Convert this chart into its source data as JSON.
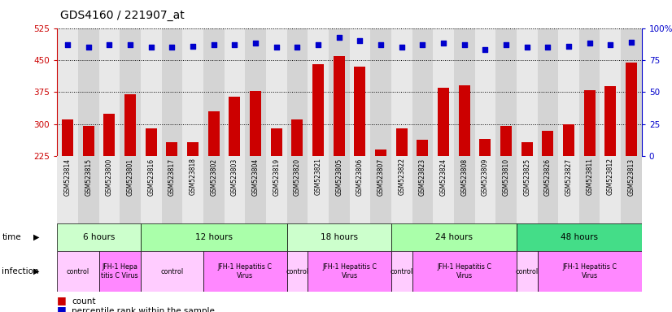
{
  "title": "GDS4160 / 221907_at",
  "samples": [
    "GSM523814",
    "GSM523815",
    "GSM523800",
    "GSM523801",
    "GSM523816",
    "GSM523817",
    "GSM523818",
    "GSM523802",
    "GSM523803",
    "GSM523804",
    "GSM523819",
    "GSM523820",
    "GSM523821",
    "GSM523805",
    "GSM523806",
    "GSM523807",
    "GSM523822",
    "GSM523823",
    "GSM523824",
    "GSM523808",
    "GSM523809",
    "GSM523810",
    "GSM523825",
    "GSM523826",
    "GSM523827",
    "GSM523811",
    "GSM523812",
    "GSM523813"
  ],
  "counts": [
    310,
    295,
    325,
    370,
    290,
    258,
    258,
    330,
    365,
    378,
    290,
    310,
    440,
    460,
    435,
    240,
    290,
    263,
    385,
    390,
    265,
    295,
    258,
    285,
    300,
    380,
    388,
    445
  ],
  "percentiles": [
    87,
    85,
    87,
    87,
    85,
    85,
    86,
    87,
    87,
    88,
    85,
    85,
    87,
    93,
    90,
    87,
    85,
    87,
    88,
    87,
    83,
    87,
    85,
    85,
    86,
    88,
    87,
    89
  ],
  "ylim_left": [
    225,
    525
  ],
  "ylim_right": [
    0,
    100
  ],
  "yticks_left": [
    225,
    300,
    375,
    450,
    525
  ],
  "yticks_right": [
    0,
    25,
    50,
    75,
    100
  ],
  "bar_color": "#cc0000",
  "dot_color": "#0000cc",
  "time_groups": [
    {
      "label": "6 hours",
      "start": 0,
      "end": 4,
      "color": "#ccffcc"
    },
    {
      "label": "12 hours",
      "start": 4,
      "end": 11,
      "color": "#aaffaa"
    },
    {
      "label": "18 hours",
      "start": 11,
      "end": 16,
      "color": "#ccffcc"
    },
    {
      "label": "24 hours",
      "start": 16,
      "end": 22,
      "color": "#aaffaa"
    },
    {
      "label": "48 hours",
      "start": 22,
      "end": 28,
      "color": "#44dd88"
    }
  ],
  "infection_groups": [
    {
      "label": "control",
      "start": 0,
      "end": 2,
      "color": "#ffccff"
    },
    {
      "label": "JFH-1 Hepa\ntitis C Virus",
      "start": 2,
      "end": 4,
      "color": "#ff88ff"
    },
    {
      "label": "control",
      "start": 4,
      "end": 7,
      "color": "#ffccff"
    },
    {
      "label": "JFH-1 Hepatitis C\nVirus",
      "start": 7,
      "end": 11,
      "color": "#ff88ff"
    },
    {
      "label": "control",
      "start": 11,
      "end": 12,
      "color": "#ffccff"
    },
    {
      "label": "JFH-1 Hepatitis C\nVirus",
      "start": 12,
      "end": 16,
      "color": "#ff88ff"
    },
    {
      "label": "control",
      "start": 16,
      "end": 17,
      "color": "#ffccff"
    },
    {
      "label": "JFH-1 Hepatitis C\nVirus",
      "start": 17,
      "end": 22,
      "color": "#ff88ff"
    },
    {
      "label": "control",
      "start": 22,
      "end": 23,
      "color": "#ffccff"
    },
    {
      "label": "JFH-1 Hepatitis C\nVirus",
      "start": 23,
      "end": 28,
      "color": "#ff88ff"
    }
  ],
  "col_colors": [
    "#e8e8e8",
    "#d4d4d4"
  ],
  "background_color": "#ffffff"
}
